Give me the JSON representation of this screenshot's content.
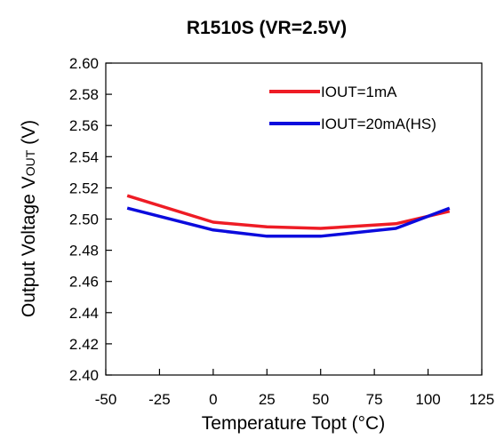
{
  "chart_data": {
    "type": "line",
    "title": "R1510S (VR=2.5V)",
    "xlabel": "Temperature Topt (°C)",
    "ylabel": "Output Voltage V",
    "ylabel_sub": "OUT",
    "ylabel_unit": " (V)",
    "xlim": [
      -50,
      125
    ],
    "ylim": [
      2.4,
      2.6
    ],
    "xticks": [
      -50,
      -25,
      0,
      25,
      50,
      75,
      100,
      125
    ],
    "yticks": [
      2.4,
      2.42,
      2.44,
      2.46,
      2.48,
      2.5,
      2.52,
      2.54,
      2.56,
      2.58,
      2.6
    ],
    "ytick_labels": [
      "2.40",
      "2.42",
      "2.44",
      "2.46",
      "2.48",
      "2.50",
      "2.52",
      "2.54",
      "2.56",
      "2.58",
      "2.60"
    ],
    "grid": false,
    "legend_position": "top-right",
    "series": [
      {
        "name": "IOUT=1mA",
        "color": "#ee1c25",
        "x": [
          -40,
          0,
          25,
          50,
          85,
          110
        ],
        "y": [
          2.515,
          2.498,
          2.495,
          2.494,
          2.497,
          2.505
        ]
      },
      {
        "name": "IOUT=20mA(HS)",
        "color": "#0b0bdd",
        "x": [
          -40,
          0,
          25,
          50,
          85,
          110
        ],
        "y": [
          2.507,
          2.493,
          2.489,
          2.489,
          2.494,
          2.507
        ]
      }
    ]
  }
}
